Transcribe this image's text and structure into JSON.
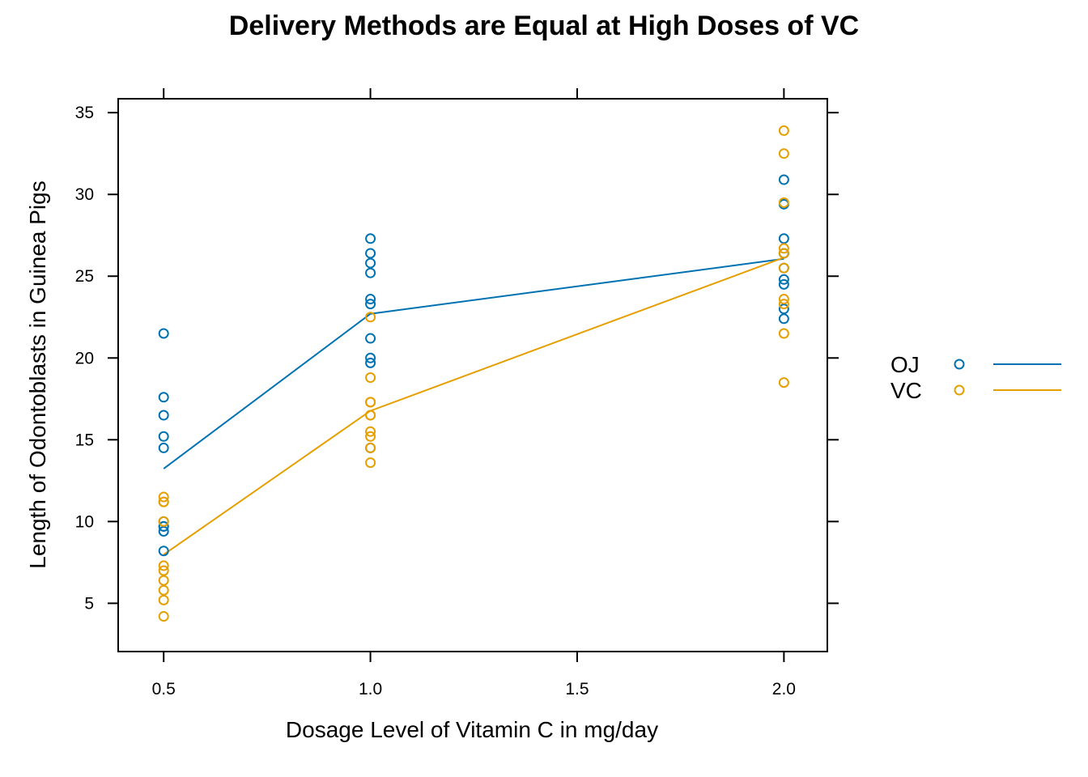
{
  "chart_data": {
    "type": "scatter",
    "title": "Delivery Methods are Equal at High Doses of VC",
    "xlabel": "Dosage Level of Vitamin C in mg/day",
    "ylabel": "Length of Odontoblasts in Guinea Pigs",
    "xlim": [
      0.39,
      2.105
    ],
    "ylim": [
      2.05,
      35.85
    ],
    "x_ticks": [
      0.5,
      1.0,
      1.5,
      2.0
    ],
    "x_tick_labels": [
      "0.5",
      "1.0",
      "1.5",
      "2.0"
    ],
    "y_ticks": [
      5,
      10,
      15,
      20,
      25,
      30,
      35
    ],
    "y_tick_labels": [
      "5",
      "10",
      "15",
      "20",
      "25",
      "30",
      "35"
    ],
    "grid": false,
    "legend_position": "right",
    "series": [
      {
        "name": "OJ",
        "color": "#0072B2",
        "points": [
          [
            0.5,
            15.2
          ],
          [
            0.5,
            21.5
          ],
          [
            0.5,
            17.6
          ],
          [
            0.5,
            9.7
          ],
          [
            0.5,
            14.5
          ],
          [
            0.5,
            10.0
          ],
          [
            0.5,
            8.2
          ],
          [
            0.5,
            9.4
          ],
          [
            0.5,
            16.5
          ],
          [
            0.5,
            9.7
          ],
          [
            1.0,
            19.7
          ],
          [
            1.0,
            23.3
          ],
          [
            1.0,
            23.6
          ],
          [
            1.0,
            26.4
          ],
          [
            1.0,
            20.0
          ],
          [
            1.0,
            25.2
          ],
          [
            1.0,
            25.8
          ],
          [
            1.0,
            21.2
          ],
          [
            1.0,
            14.5
          ],
          [
            1.0,
            27.3
          ],
          [
            2.0,
            25.5
          ],
          [
            2.0,
            26.4
          ],
          [
            2.0,
            22.4
          ],
          [
            2.0,
            24.5
          ],
          [
            2.0,
            24.8
          ],
          [
            2.0,
            30.9
          ],
          [
            2.0,
            26.4
          ],
          [
            2.0,
            27.3
          ],
          [
            2.0,
            29.4
          ],
          [
            2.0,
            23.0
          ]
        ],
        "means": [
          [
            0.5,
            13.23
          ],
          [
            1.0,
            22.7
          ],
          [
            2.0,
            26.06
          ]
        ]
      },
      {
        "name": "VC",
        "color": "#E69F00",
        "points": [
          [
            0.5,
            4.2
          ],
          [
            0.5,
            11.5
          ],
          [
            0.5,
            7.3
          ],
          [
            0.5,
            5.8
          ],
          [
            0.5,
            6.4
          ],
          [
            0.5,
            10.0
          ],
          [
            0.5,
            11.2
          ],
          [
            0.5,
            11.2
          ],
          [
            0.5,
            5.2
          ],
          [
            0.5,
            7.0
          ],
          [
            1.0,
            16.5
          ],
          [
            1.0,
            16.5
          ],
          [
            1.0,
            15.2
          ],
          [
            1.0,
            17.3
          ],
          [
            1.0,
            22.5
          ],
          [
            1.0,
            17.3
          ],
          [
            1.0,
            13.6
          ],
          [
            1.0,
            14.5
          ],
          [
            1.0,
            18.8
          ],
          [
            1.0,
            15.5
          ],
          [
            2.0,
            23.6
          ],
          [
            2.0,
            18.5
          ],
          [
            2.0,
            33.9
          ],
          [
            2.0,
            25.5
          ],
          [
            2.0,
            26.4
          ],
          [
            2.0,
            32.5
          ],
          [
            2.0,
            26.7
          ],
          [
            2.0,
            21.5
          ],
          [
            2.0,
            23.3
          ],
          [
            2.0,
            29.5
          ]
        ],
        "means": [
          [
            0.5,
            7.98
          ],
          [
            1.0,
            16.77
          ],
          [
            2.0,
            26.14
          ]
        ]
      }
    ]
  }
}
